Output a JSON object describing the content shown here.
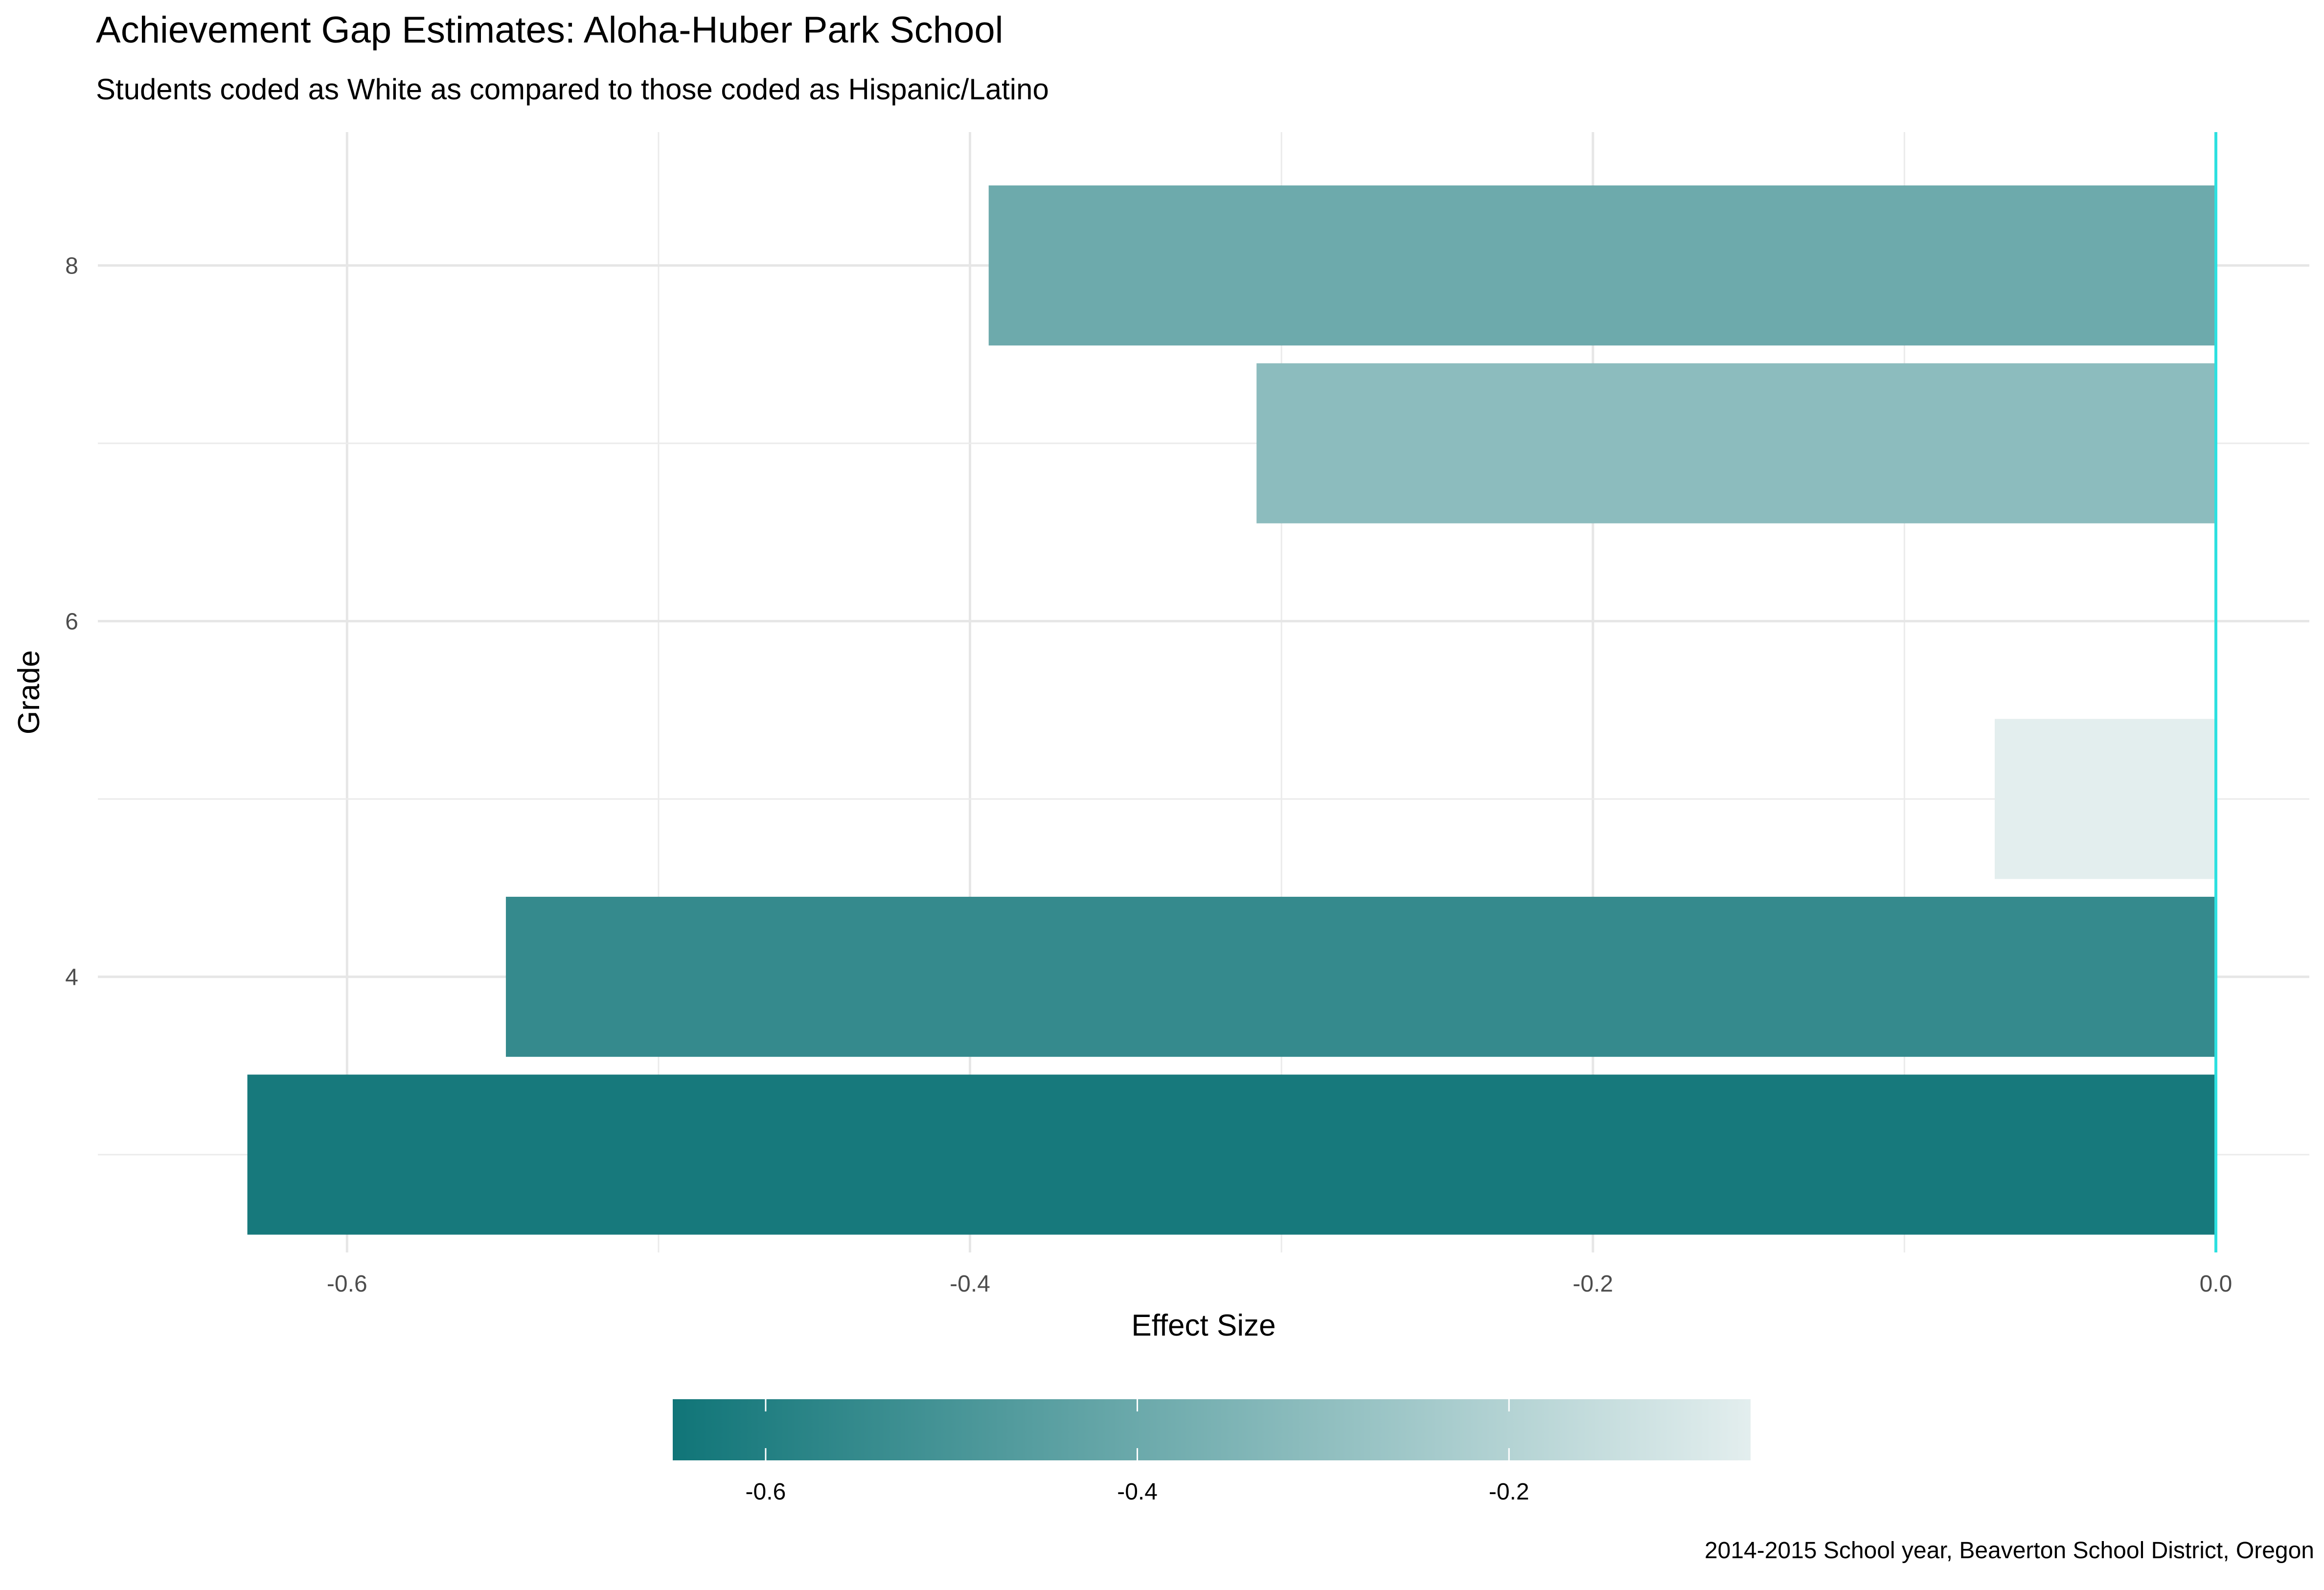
{
  "chart_data": {
    "type": "bar",
    "orientation": "horizontal",
    "title": "Achievement Gap Estimates: Aloha-Huber Park School",
    "subtitle": "Students coded as White as compared to those coded as Hispanic/Latino",
    "caption": "2014-2015 School year, Beaverton School District, Oregon",
    "xlabel": "Effect Size",
    "ylabel": "Grade",
    "categories": [
      3,
      4,
      5,
      7,
      8
    ],
    "values": [
      -0.632,
      -0.549,
      -0.071,
      -0.308,
      -0.394
    ],
    "xlim": [
      -0.68,
      0.03
    ],
    "ylim": [
      2.45,
      8.75
    ],
    "x_ticks": [
      "-0.6",
      "-0.4",
      "-0.2",
      "0.0"
    ],
    "x_tick_values": [
      -0.6,
      -0.4,
      -0.2,
      0.0
    ],
    "y_ticks": [
      "4",
      "6",
      "8"
    ],
    "y_tick_values": [
      4,
      6,
      8
    ],
    "reference_line": {
      "x": 0,
      "color": "#2ee0e0"
    },
    "grid": true,
    "legend": {
      "placement": "bottom",
      "type": "colorbar",
      "range": [
        -0.65,
        -0.07
      ],
      "ticks": [
        "-0.6",
        "-0.4",
        "-0.2"
      ],
      "tick_values": [
        -0.6,
        -0.4,
        -0.2
      ],
      "color_low": "#107578",
      "color_high": "#e3eeee"
    }
  }
}
